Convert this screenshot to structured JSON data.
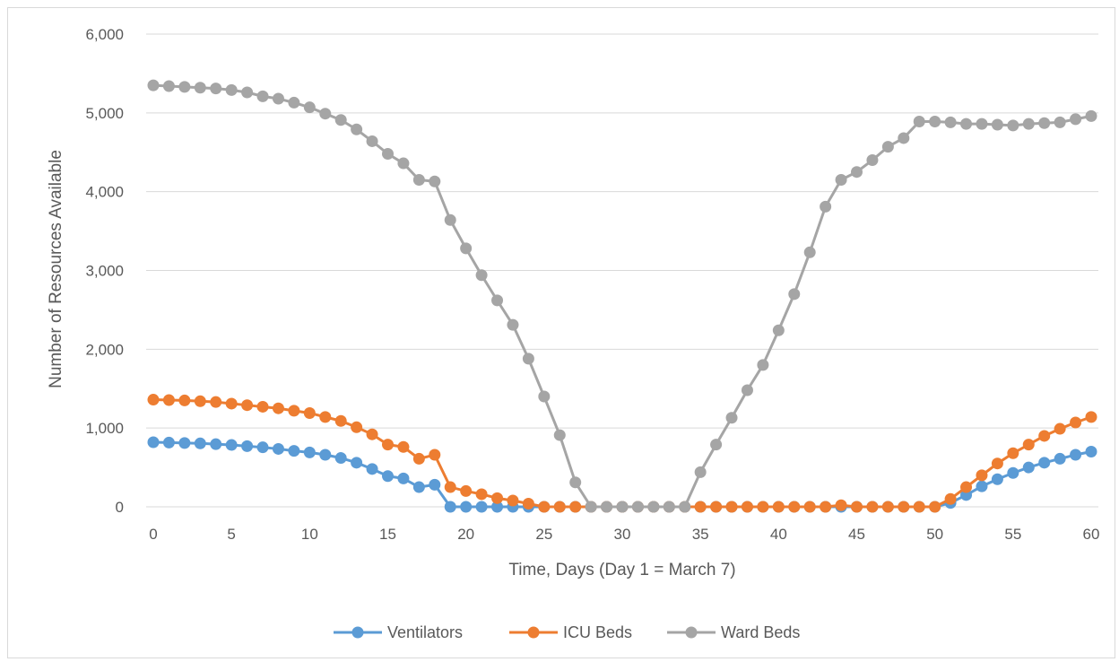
{
  "chart_data": {
    "type": "line",
    "xlabel": "Time, Days (Day 1 = March 7)",
    "ylabel": "Number of Resources Available",
    "xlim": [
      0,
      60
    ],
    "ylim": [
      0,
      6000
    ],
    "xticks": [
      0,
      5,
      10,
      15,
      20,
      25,
      30,
      35,
      40,
      45,
      50,
      55,
      60
    ],
    "yticks": [
      0,
      1000,
      2000,
      3000,
      4000,
      5000,
      6000
    ],
    "xtick_labels": [
      "0",
      "5",
      "10",
      "15",
      "20",
      "25",
      "30",
      "35",
      "40",
      "45",
      "50",
      "55",
      "60"
    ],
    "ytick_labels": [
      "0",
      "1,000",
      "2,000",
      "3,000",
      "4,000",
      "5,000",
      "6,000"
    ],
    "grid": "horizontal",
    "legend_position": "bottom",
    "x": [
      0,
      1,
      2,
      3,
      4,
      5,
      6,
      7,
      8,
      9,
      10,
      11,
      12,
      13,
      14,
      15,
      16,
      17,
      18,
      19,
      20,
      21,
      22,
      23,
      24,
      25,
      26,
      27,
      28,
      29,
      30,
      31,
      32,
      33,
      34,
      35,
      36,
      37,
      38,
      39,
      40,
      41,
      42,
      43,
      44,
      45,
      46,
      47,
      48,
      49,
      50,
      51,
      52,
      53,
      54,
      55,
      56,
      57,
      58,
      59,
      60
    ],
    "series": [
      {
        "name": "Ventilators",
        "color": "#5b9bd5",
        "values": [
          820,
          815,
          810,
          805,
          795,
          785,
          770,
          755,
          735,
          710,
          690,
          660,
          620,
          560,
          480,
          390,
          360,
          250,
          280,
          0,
          0,
          0,
          0,
          0,
          0,
          0,
          0,
          0,
          0,
          0,
          0,
          0,
          0,
          0,
          0,
          0,
          0,
          0,
          0,
          0,
          0,
          0,
          0,
          0,
          0,
          0,
          0,
          0,
          0,
          0,
          0,
          50,
          150,
          260,
          350,
          430,
          500,
          560,
          610,
          660,
          700
        ]
      },
      {
        "name": "ICU Beds",
        "color": "#ed7d31",
        "values": [
          1360,
          1355,
          1350,
          1340,
          1330,
          1310,
          1290,
          1270,
          1250,
          1220,
          1190,
          1140,
          1090,
          1010,
          920,
          790,
          760,
          610,
          660,
          250,
          200,
          160,
          110,
          80,
          40,
          0,
          0,
          0,
          0,
          0,
          0,
          0,
          0,
          0,
          0,
          0,
          0,
          0,
          0,
          0,
          0,
          0,
          0,
          0,
          20,
          0,
          0,
          0,
          0,
          0,
          0,
          100,
          250,
          400,
          550,
          680,
          790,
          900,
          990,
          1070,
          1140
        ]
      },
      {
        "name": "Ward Beds",
        "color": "#a5a5a5",
        "values": [
          5350,
          5340,
          5330,
          5320,
          5310,
          5290,
          5260,
          5210,
          5180,
          5130,
          5070,
          4990,
          4910,
          4790,
          4640,
          4480,
          4360,
          4150,
          4130,
          3640,
          3280,
          2940,
          2620,
          2310,
          1880,
          1400,
          910,
          310,
          0,
          0,
          0,
          0,
          0,
          0,
          0,
          440,
          790,
          1130,
          1480,
          1800,
          2240,
          2700,
          3230,
          3810,
          4150,
          4250,
          4400,
          4570,
          4680,
          4890,
          4890,
          4880,
          4860,
          4860,
          4850,
          4840,
          4860,
          4870,
          4880,
          4920,
          4960
        ]
      }
    ]
  }
}
